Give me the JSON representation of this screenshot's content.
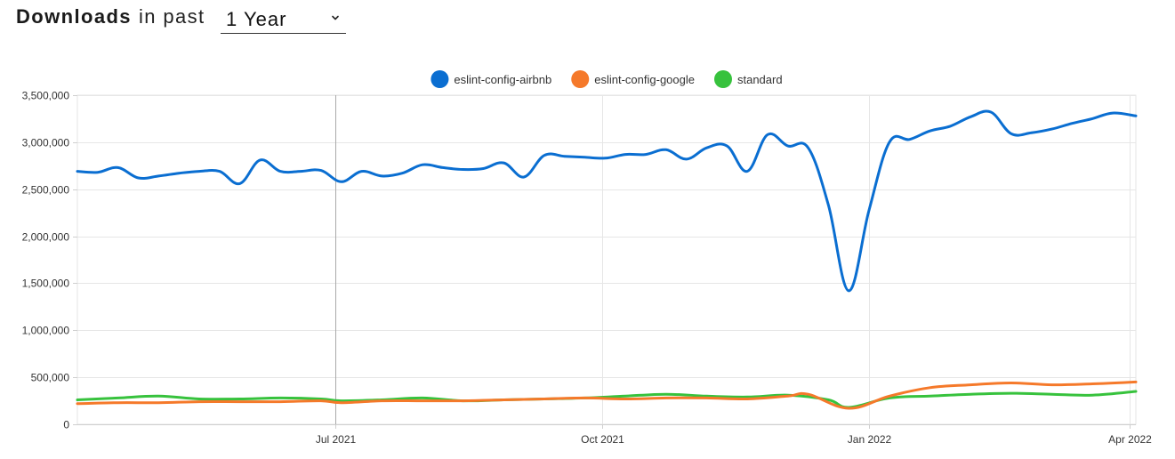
{
  "header": {
    "title": "Downloads",
    "subtitle": "in past",
    "period_value": "1 Year"
  },
  "chart_data": {
    "type": "line",
    "y_axis": {
      "ylim": [
        0,
        3500000
      ],
      "ticks": [
        {
          "value": 0,
          "label": "0"
        },
        {
          "value": 500000,
          "label": "500,000"
        },
        {
          "value": 1000000,
          "label": "1,000,000"
        },
        {
          "value": 1500000,
          "label": "1,500,000"
        },
        {
          "value": 2000000,
          "label": "2,000,000"
        },
        {
          "value": 2500000,
          "label": "2,500,000"
        },
        {
          "value": 3000000,
          "label": "3,000,000"
        },
        {
          "value": 3500000,
          "label": "3,500,000"
        }
      ]
    },
    "x_axis": {
      "range": [
        "2021-04-03",
        "2022-04-03"
      ],
      "ticks": [
        {
          "date": "2021-07-01",
          "label": "Jul 2021"
        },
        {
          "date": "2021-10-01",
          "label": "Oct 2021"
        },
        {
          "date": "2022-01-01",
          "label": "Jan 2022"
        },
        {
          "date": "2022-04-01",
          "label": "Apr 2022"
        }
      ]
    },
    "legend_position": "top-center",
    "grid": true,
    "highlight_date": "2021-07-01",
    "series": [
      {
        "name": "eslint-config-airbnb",
        "color": "#0a6ed1",
        "points": [
          [
            "2021-04-03",
            2690000
          ],
          [
            "2021-04-10",
            2680000
          ],
          [
            "2021-04-17",
            2730000
          ],
          [
            "2021-04-24",
            2620000
          ],
          [
            "2021-05-01",
            2640000
          ],
          [
            "2021-05-08",
            2670000
          ],
          [
            "2021-05-15",
            2690000
          ],
          [
            "2021-05-22",
            2690000
          ],
          [
            "2021-05-29",
            2560000
          ],
          [
            "2021-06-05",
            2810000
          ],
          [
            "2021-06-12",
            2690000
          ],
          [
            "2021-06-19",
            2690000
          ],
          [
            "2021-06-26",
            2700000
          ],
          [
            "2021-07-03",
            2580000
          ],
          [
            "2021-07-10",
            2690000
          ],
          [
            "2021-07-17",
            2640000
          ],
          [
            "2021-07-24",
            2670000
          ],
          [
            "2021-07-31",
            2760000
          ],
          [
            "2021-08-07",
            2730000
          ],
          [
            "2021-08-14",
            2710000
          ],
          [
            "2021-08-21",
            2720000
          ],
          [
            "2021-08-28",
            2780000
          ],
          [
            "2021-09-04",
            2630000
          ],
          [
            "2021-09-11",
            2860000
          ],
          [
            "2021-09-18",
            2850000
          ],
          [
            "2021-09-25",
            2840000
          ],
          [
            "2021-10-02",
            2830000
          ],
          [
            "2021-10-09",
            2870000
          ],
          [
            "2021-10-16",
            2870000
          ],
          [
            "2021-10-23",
            2920000
          ],
          [
            "2021-10-30",
            2820000
          ],
          [
            "2021-11-06",
            2940000
          ],
          [
            "2021-11-13",
            2960000
          ],
          [
            "2021-11-20",
            2690000
          ],
          [
            "2021-11-27",
            3080000
          ],
          [
            "2021-12-04",
            2960000
          ],
          [
            "2021-12-11",
            2940000
          ],
          [
            "2021-12-18",
            2330000
          ],
          [
            "2021-12-25",
            1420000
          ],
          [
            "2022-01-01",
            2280000
          ],
          [
            "2022-01-08",
            3000000
          ],
          [
            "2022-01-15",
            3030000
          ],
          [
            "2022-01-22",
            3120000
          ],
          [
            "2022-01-29",
            3170000
          ],
          [
            "2022-02-05",
            3270000
          ],
          [
            "2022-02-12",
            3320000
          ],
          [
            "2022-02-19",
            3090000
          ],
          [
            "2022-02-26",
            3100000
          ],
          [
            "2022-03-05",
            3140000
          ],
          [
            "2022-03-12",
            3200000
          ],
          [
            "2022-03-19",
            3250000
          ],
          [
            "2022-03-26",
            3310000
          ],
          [
            "2022-04-03",
            3280000
          ]
        ]
      },
      {
        "name": "eslint-config-google",
        "color": "#f5792a",
        "points": [
          [
            "2021-04-03",
            220000
          ],
          [
            "2021-04-17",
            230000
          ],
          [
            "2021-05-01",
            230000
          ],
          [
            "2021-05-15",
            240000
          ],
          [
            "2021-05-29",
            240000
          ],
          [
            "2021-06-12",
            240000
          ],
          [
            "2021-06-26",
            250000
          ],
          [
            "2021-07-03",
            230000
          ],
          [
            "2021-07-17",
            250000
          ],
          [
            "2021-07-31",
            250000
          ],
          [
            "2021-08-14",
            250000
          ],
          [
            "2021-08-28",
            260000
          ],
          [
            "2021-09-11",
            270000
          ],
          [
            "2021-09-25",
            280000
          ],
          [
            "2021-10-09",
            270000
          ],
          [
            "2021-10-23",
            280000
          ],
          [
            "2021-11-06",
            280000
          ],
          [
            "2021-11-20",
            270000
          ],
          [
            "2021-12-04",
            300000
          ],
          [
            "2021-12-11",
            320000
          ],
          [
            "2021-12-25",
            170000
          ],
          [
            "2022-01-08",
            300000
          ],
          [
            "2022-01-22",
            390000
          ],
          [
            "2022-02-05",
            420000
          ],
          [
            "2022-02-19",
            440000
          ],
          [
            "2022-03-05",
            420000
          ],
          [
            "2022-03-19",
            430000
          ],
          [
            "2022-04-03",
            450000
          ]
        ]
      },
      {
        "name": "standard",
        "color": "#37c23d",
        "points": [
          [
            "2021-04-03",
            260000
          ],
          [
            "2021-04-17",
            280000
          ],
          [
            "2021-05-01",
            300000
          ],
          [
            "2021-05-15",
            270000
          ],
          [
            "2021-05-29",
            270000
          ],
          [
            "2021-06-12",
            280000
          ],
          [
            "2021-06-26",
            270000
          ],
          [
            "2021-07-03",
            250000
          ],
          [
            "2021-07-17",
            260000
          ],
          [
            "2021-07-31",
            280000
          ],
          [
            "2021-08-14",
            250000
          ],
          [
            "2021-08-28",
            260000
          ],
          [
            "2021-09-11",
            270000
          ],
          [
            "2021-09-25",
            280000
          ],
          [
            "2021-10-09",
            300000
          ],
          [
            "2021-10-23",
            320000
          ],
          [
            "2021-11-06",
            300000
          ],
          [
            "2021-11-20",
            290000
          ],
          [
            "2021-12-04",
            310000
          ],
          [
            "2021-12-18",
            260000
          ],
          [
            "2021-12-25",
            180000
          ],
          [
            "2022-01-08",
            280000
          ],
          [
            "2022-01-22",
            300000
          ],
          [
            "2022-02-05",
            320000
          ],
          [
            "2022-02-19",
            330000
          ],
          [
            "2022-03-05",
            320000
          ],
          [
            "2022-03-19",
            310000
          ],
          [
            "2022-04-03",
            350000
          ]
        ]
      }
    ]
  }
}
